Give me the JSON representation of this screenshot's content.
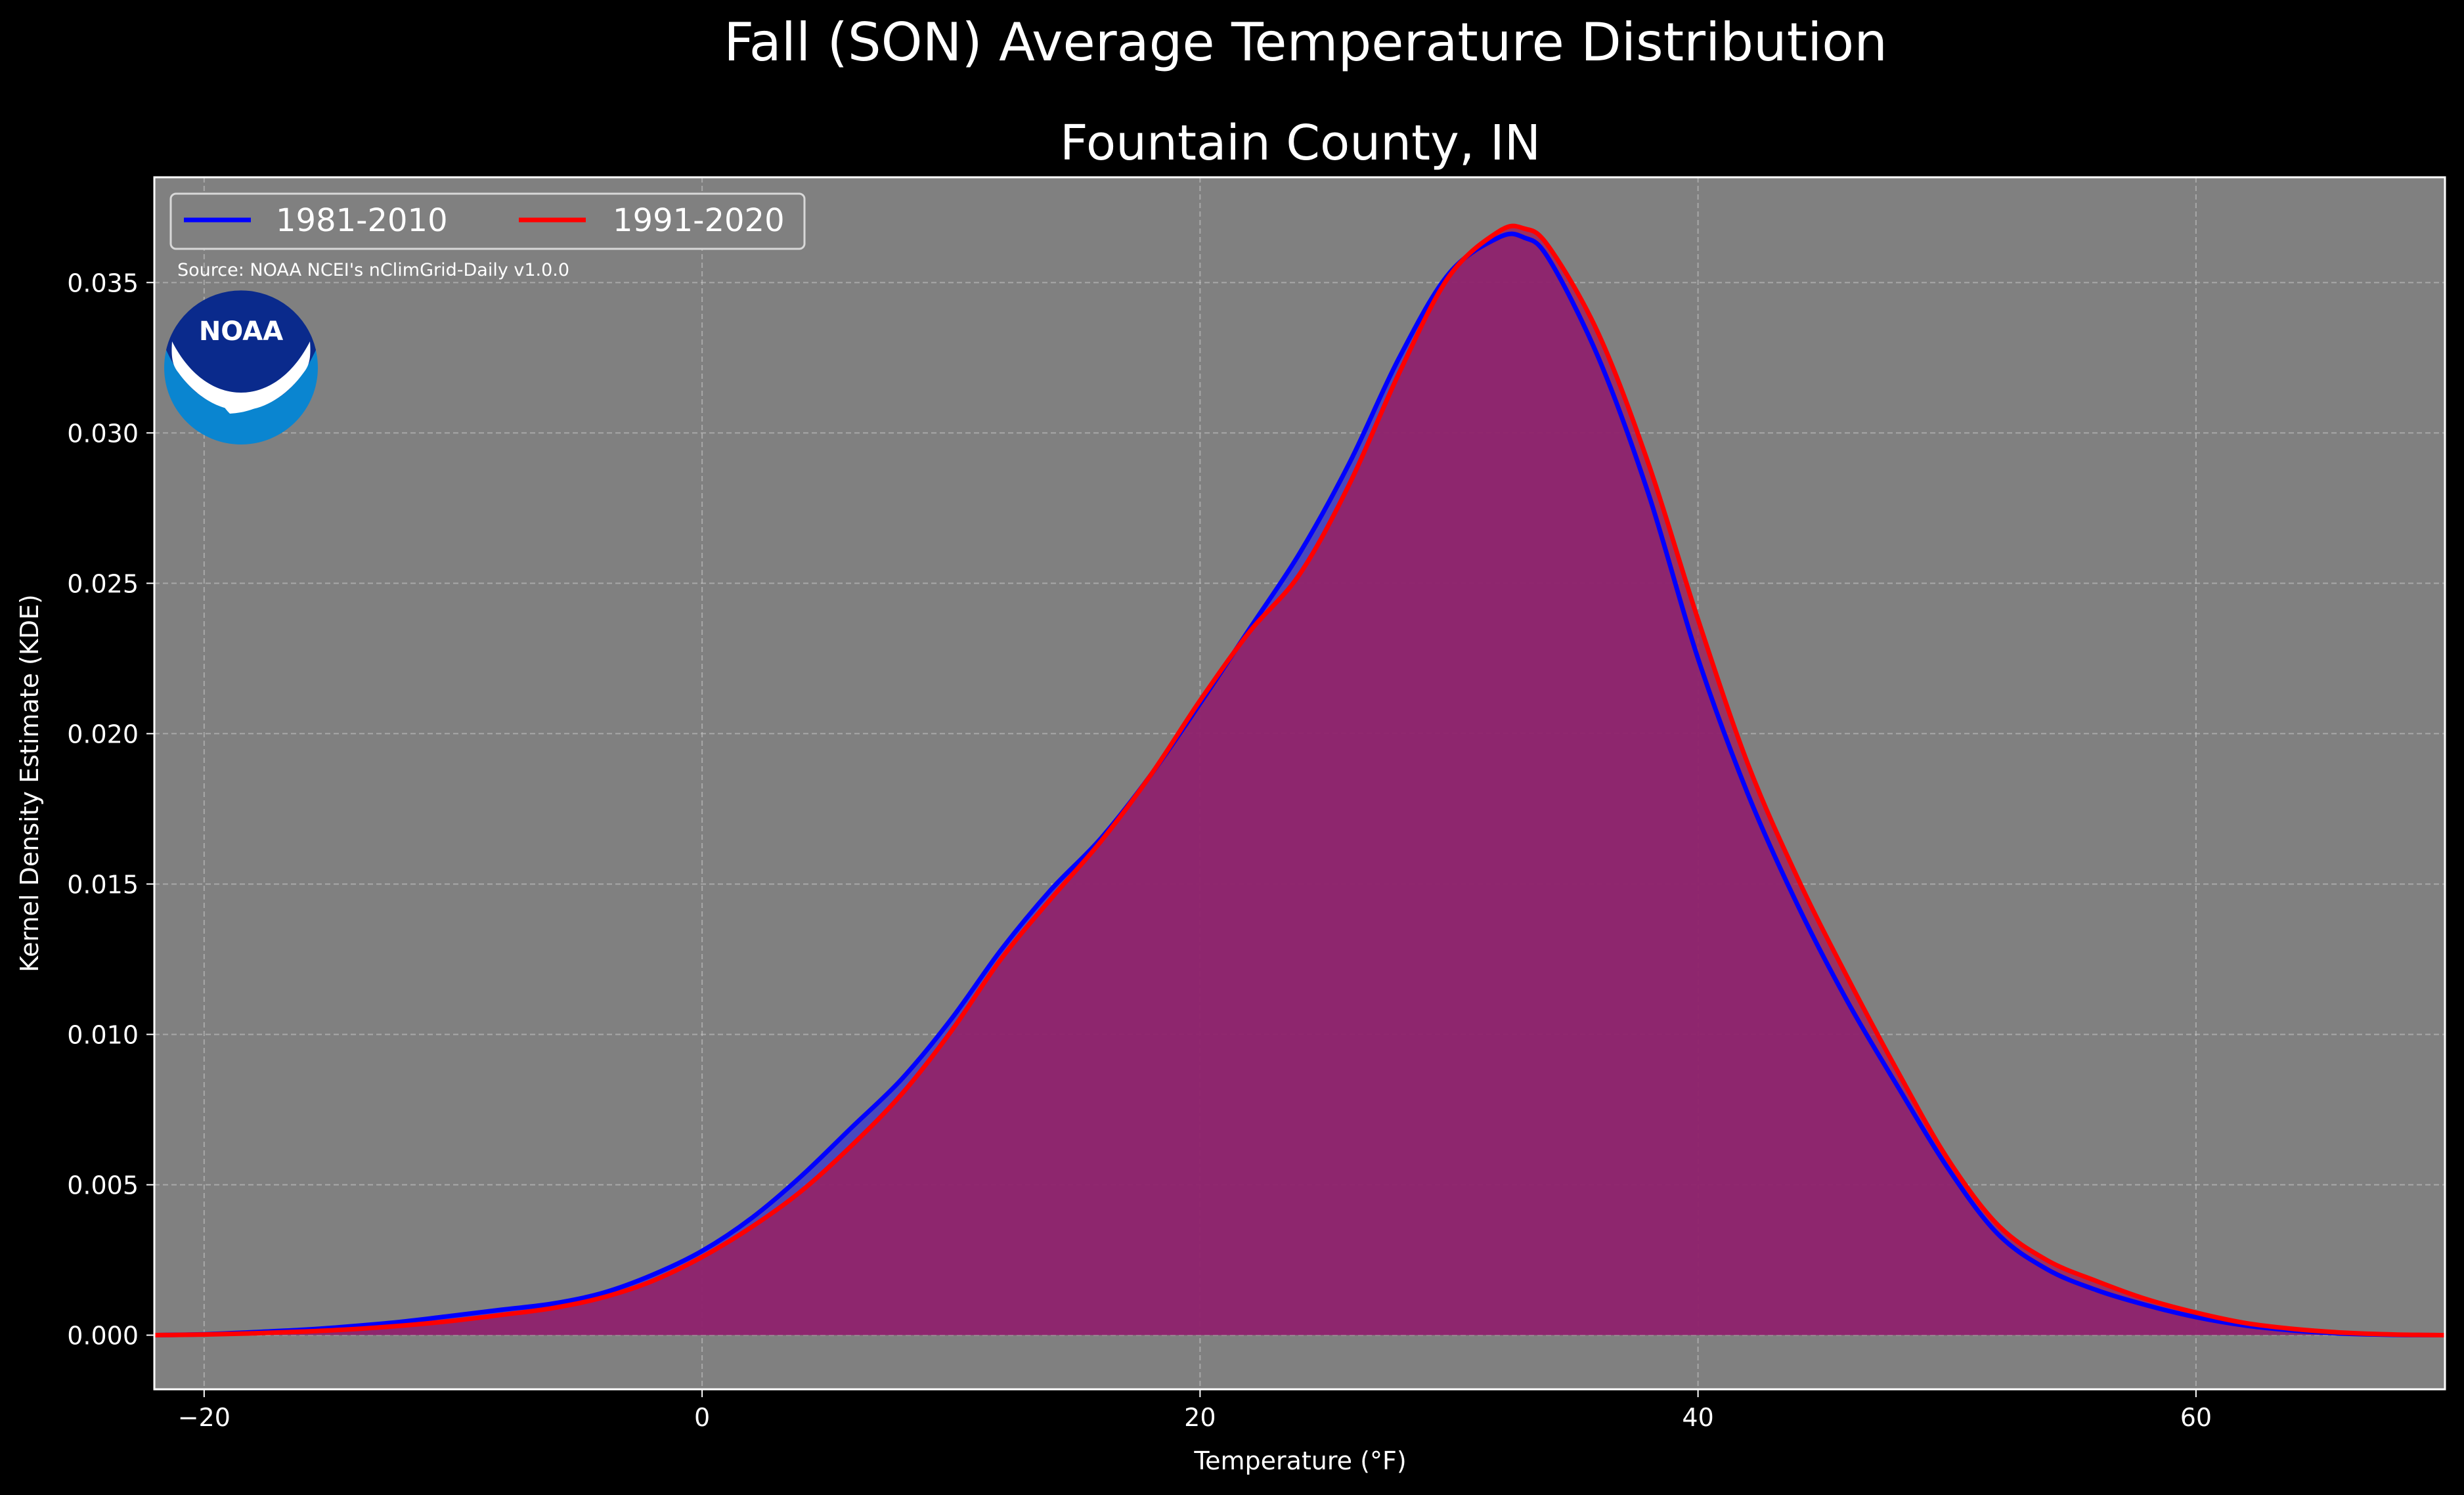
{
  "chart_data": {
    "type": "area",
    "suptitle": "Fall (SON) Average Temperature Distribution",
    "title": "Fountain County, IN",
    "xlabel": "Temperature (°F)",
    "ylabel": "Kernel Density Estimate (KDE)",
    "xlim": [
      -22,
      70
    ],
    "ylim": [
      -0.0018,
      0.0385
    ],
    "xticks": [
      -20,
      0,
      20,
      40,
      60
    ],
    "xtick_labels": [
      "−20",
      "0",
      "20",
      "40",
      "60"
    ],
    "yticks": [
      0.0,
      0.005,
      0.01,
      0.015,
      0.02,
      0.025,
      0.03,
      0.035
    ],
    "ytick_labels": [
      "0.000",
      "0.005",
      "0.010",
      "0.015",
      "0.020",
      "0.025",
      "0.030",
      "0.035"
    ],
    "grid": true,
    "legend": "top-left",
    "source": "Source: NOAA NCEI's nClimGrid-Daily v1.0.0",
    "background": "#808080",
    "series": [
      {
        "name": "1981-2010",
        "color": "#0000ff",
        "fill": "#4040c8",
        "x": [
          -22,
          -20,
          -18,
          -16,
          -14,
          -12,
          -10,
          -8,
          -6,
          -4,
          -2,
          0,
          2,
          4,
          6,
          8,
          10,
          12,
          14,
          16,
          18,
          20,
          22,
          24,
          26,
          28,
          30,
          32,
          33,
          34,
          36,
          38,
          40,
          42,
          44,
          46,
          48,
          50,
          52,
          54,
          56,
          58,
          60,
          62,
          64,
          66,
          68,
          70
        ],
        "y": [
          0.0,
          3e-05,
          0.0001,
          0.00018,
          0.0003,
          0.00045,
          0.00065,
          0.00085,
          0.00105,
          0.0014,
          0.002,
          0.0028,
          0.0039,
          0.0053,
          0.0069,
          0.0085,
          0.0105,
          0.0128,
          0.0148,
          0.0165,
          0.0186,
          0.021,
          0.0235,
          0.026,
          0.029,
          0.0325,
          0.0353,
          0.0365,
          0.0365,
          0.0358,
          0.0325,
          0.028,
          0.0225,
          0.018,
          0.0143,
          0.0111,
          0.0083,
          0.0056,
          0.0034,
          0.0022,
          0.0015,
          0.001,
          0.0006,
          0.00032,
          0.00015,
          5e-05,
          1e-05,
          0.0
        ]
      },
      {
        "name": "1991-2020",
        "color": "#ff0000",
        "fill": "#a01e5a",
        "x": [
          -22,
          -20,
          -18,
          -16,
          -14,
          -12,
          -10,
          -8,
          -6,
          -4,
          -2,
          0,
          2,
          4,
          6,
          8,
          10,
          12,
          14,
          16,
          18,
          20,
          22,
          24,
          26,
          28,
          30,
          32,
          33,
          34,
          36,
          38,
          40,
          42,
          44,
          46,
          48,
          50,
          52,
          54,
          56,
          58,
          60,
          62,
          64,
          66,
          68,
          70
        ],
        "y": [
          0.0,
          2e-05,
          6e-05,
          0.00012,
          0.0002,
          0.00032,
          0.00048,
          0.00068,
          0.0009,
          0.00125,
          0.0018,
          0.0026,
          0.0036,
          0.0048,
          0.0063,
          0.008,
          0.0101,
          0.0125,
          0.0145,
          0.0164,
          0.0186,
          0.0211,
          0.0234,
          0.0253,
          0.0283,
          0.032,
          0.0352,
          0.0367,
          0.0368,
          0.0362,
          0.0333,
          0.029,
          0.0238,
          0.019,
          0.0152,
          0.0119,
          0.0088,
          0.0059,
          0.0037,
          0.0025,
          0.0018,
          0.0012,
          0.00075,
          0.0004,
          0.0002,
          8e-05,
          2e-05,
          0.0
        ]
      }
    ]
  },
  "logo": {
    "text": "NOAA",
    "dark_color": "#0a2a8c",
    "light_color": "#0a85d0"
  }
}
